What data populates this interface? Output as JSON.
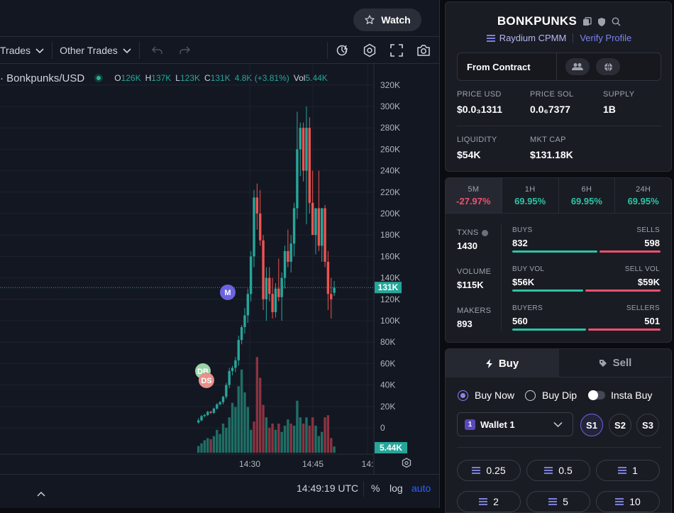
{
  "header": {
    "watch_label": "Watch"
  },
  "toolbar": {
    "trades_label": "Trades",
    "other_trades_label": "Other Trades"
  },
  "legend": {
    "symbol": "· Bonkpunks/USD",
    "o_key": "O",
    "o": "126K",
    "h_key": "H",
    "h": "137K",
    "l_key": "L",
    "l": "123K",
    "c_key": "C",
    "c": "131K",
    "change": "4.8K (+3.81%)",
    "vol_key": "Vol",
    "vol": "5.44K"
  },
  "chart_data": {
    "type": "candlestick",
    "y_ticks": [
      "320K",
      "300K",
      "280K",
      "260K",
      "240K",
      "220K",
      "200K",
      "180K",
      "160K",
      "140K",
      "120K",
      "100K",
      "80K",
      "60K",
      "40K",
      "20K",
      "0"
    ],
    "x_ticks": [
      "14:30",
      "14:45",
      "14:"
    ],
    "last_price_label": "131K",
    "volume_label": "5.44K",
    "markers": [
      {
        "label": "M",
        "color": "#6c63e0"
      },
      {
        "label": "DB",
        "color": "#9bd3a8"
      },
      {
        "label": "DS",
        "color": "#e8908a"
      }
    ],
    "candles": [
      {
        "o": 5,
        "h": 9,
        "l": 4,
        "c": 7
      },
      {
        "o": 7,
        "h": 12,
        "l": 6,
        "c": 11
      },
      {
        "o": 11,
        "h": 13,
        "l": 10,
        "c": 12
      },
      {
        "o": 12,
        "h": 16,
        "l": 11,
        "c": 15
      },
      {
        "o": 15,
        "h": 16,
        "l": 13,
        "c": 14
      },
      {
        "o": 14,
        "h": 19,
        "l": 13,
        "c": 18
      },
      {
        "o": 18,
        "h": 23,
        "l": 17,
        "c": 22
      },
      {
        "o": 22,
        "h": 25,
        "l": 21,
        "c": 24
      },
      {
        "o": 24,
        "h": 30,
        "l": 22,
        "c": 29
      },
      {
        "o": 29,
        "h": 42,
        "l": 27,
        "c": 40
      },
      {
        "o": 40,
        "h": 56,
        "l": 37,
        "c": 53
      },
      {
        "o": 53,
        "h": 58,
        "l": 49,
        "c": 56
      },
      {
        "o": 56,
        "h": 66,
        "l": 52,
        "c": 63
      },
      {
        "o": 63,
        "h": 86,
        "l": 58,
        "c": 82
      },
      {
        "o": 82,
        "h": 96,
        "l": 78,
        "c": 94
      },
      {
        "o": 94,
        "h": 112,
        "l": 88,
        "c": 105
      },
      {
        "o": 105,
        "h": 130,
        "l": 98,
        "c": 125
      },
      {
        "o": 125,
        "h": 165,
        "l": 118,
        "c": 160
      },
      {
        "o": 160,
        "h": 222,
        "l": 150,
        "c": 215
      },
      {
        "o": 215,
        "h": 228,
        "l": 185,
        "c": 200
      },
      {
        "o": 200,
        "h": 222,
        "l": 170,
        "c": 175
      },
      {
        "o": 175,
        "h": 180,
        "l": 110,
        "c": 120
      },
      {
        "o": 120,
        "h": 150,
        "l": 100,
        "c": 140
      },
      {
        "o": 140,
        "h": 150,
        "l": 118,
        "c": 125
      },
      {
        "o": 125,
        "h": 140,
        "l": 102,
        "c": 108
      },
      {
        "o": 108,
        "h": 135,
        "l": 103,
        "c": 130
      },
      {
        "o": 130,
        "h": 158,
        "l": 118,
        "c": 122
      },
      {
        "o": 122,
        "h": 145,
        "l": 100,
        "c": 140
      },
      {
        "o": 140,
        "h": 170,
        "l": 130,
        "c": 165
      },
      {
        "o": 165,
        "h": 185,
        "l": 150,
        "c": 155
      },
      {
        "o": 155,
        "h": 180,
        "l": 145,
        "c": 172
      },
      {
        "o": 172,
        "h": 210,
        "l": 160,
        "c": 205
      },
      {
        "o": 205,
        "h": 295,
        "l": 195,
        "c": 260
      },
      {
        "o": 260,
        "h": 285,
        "l": 235,
        "c": 280
      },
      {
        "o": 280,
        "h": 285,
        "l": 230,
        "c": 240
      },
      {
        "o": 240,
        "h": 300,
        "l": 190,
        "c": 280
      },
      {
        "o": 280,
        "h": 290,
        "l": 200,
        "c": 210
      },
      {
        "o": 210,
        "h": 240,
        "l": 180,
        "c": 180
      },
      {
        "o": 180,
        "h": 205,
        "l": 162,
        "c": 205
      },
      {
        "o": 205,
        "h": 240,
        "l": 165,
        "c": 170
      },
      {
        "o": 170,
        "h": 205,
        "l": 155,
        "c": 205
      },
      {
        "o": 205,
        "h": 208,
        "l": 150,
        "c": 155
      },
      {
        "o": 155,
        "h": 165,
        "l": 110,
        "c": 125
      },
      {
        "o": 125,
        "h": 140,
        "l": 102,
        "c": 120
      },
      {
        "o": 126,
        "h": 137,
        "l": 123,
        "c": 131
      }
    ],
    "volumes": [
      {
        "v": 3.2,
        "up": true
      },
      {
        "v": 4.5,
        "up": true
      },
      {
        "v": 6,
        "up": true
      },
      {
        "v": 7,
        "up": true
      },
      {
        "v": 6.5,
        "up": false
      },
      {
        "v": 8,
        "up": true
      },
      {
        "v": 11,
        "up": true
      },
      {
        "v": 9,
        "up": true
      },
      {
        "v": 14,
        "up": true
      },
      {
        "v": 12,
        "up": true
      },
      {
        "v": 17,
        "up": true
      },
      {
        "v": 24,
        "up": true
      },
      {
        "v": 22,
        "up": true
      },
      {
        "v": 32,
        "up": true
      },
      {
        "v": 40,
        "up": true
      },
      {
        "v": 29,
        "up": true
      },
      {
        "v": 22,
        "up": true
      },
      {
        "v": 11,
        "up": true
      },
      {
        "v": 15,
        "up": false
      },
      {
        "v": 46,
        "up": false
      },
      {
        "v": 36,
        "up": false
      },
      {
        "v": 23,
        "up": false
      },
      {
        "v": 17,
        "up": true
      },
      {
        "v": 12,
        "up": false
      },
      {
        "v": 14,
        "up": false
      },
      {
        "v": 11,
        "up": true
      },
      {
        "v": 14,
        "up": false
      },
      {
        "v": 10,
        "up": true
      },
      {
        "v": 13,
        "up": true
      },
      {
        "v": 16,
        "up": true
      },
      {
        "v": 14,
        "up": false
      },
      {
        "v": 13,
        "up": true
      },
      {
        "v": 25,
        "up": true
      },
      {
        "v": 17,
        "up": true
      },
      {
        "v": 14,
        "up": false
      },
      {
        "v": 17,
        "up": true
      },
      {
        "v": 13,
        "up": false
      },
      {
        "v": 17,
        "up": false
      },
      {
        "v": 13,
        "up": true
      },
      {
        "v": 8,
        "up": true
      },
      {
        "v": 10,
        "up": true
      },
      {
        "v": 17,
        "up": false
      },
      {
        "v": 18,
        "up": false
      },
      {
        "v": 7,
        "up": false
      },
      {
        "v": 3,
        "up": true
      }
    ]
  },
  "bottom": {
    "time": "14:49:19 UTC",
    "percent": "%",
    "log": "log",
    "auto": "auto"
  },
  "token": {
    "name": "BONKPUNKS",
    "dex": "Raydium CPMM",
    "verify": "Verify Profile",
    "from_contract": "From Contract",
    "stats": [
      {
        "label": "PRICE USD",
        "value": "$0.0₃1311"
      },
      {
        "label": "PRICE SOL",
        "value": "0.0₆7377"
      },
      {
        "label": "SUPPLY",
        "value": "1B"
      },
      {
        "label": "LIQUIDITY",
        "value": "$54K"
      },
      {
        "label": "MKT CAP",
        "value": "$131.18K"
      }
    ]
  },
  "timeframes": [
    {
      "label": "5M",
      "value": "-27.97%"
    },
    {
      "label": "1H",
      "value": "69.95%"
    },
    {
      "label": "6H",
      "value": "69.95%"
    },
    {
      "label": "24H",
      "value": "69.95%"
    }
  ],
  "txstats": [
    {
      "label": "TXNS",
      "value": "1430",
      "left_label": "BUYS",
      "left": "832",
      "right_label": "SELLS",
      "right": "598",
      "ratio": 0.582
    },
    {
      "label": "VOLUME",
      "value": "$115K",
      "left_label": "BUY VOL",
      "left": "$56K",
      "right_label": "SELL VOL",
      "right": "$59K",
      "ratio": 0.487
    },
    {
      "label": "MAKERS",
      "value": "893",
      "left_label": "BUYERS",
      "left": "560",
      "right_label": "SELLERS",
      "right": "501",
      "ratio": 0.528
    }
  ],
  "trade": {
    "buy_tab": "Buy",
    "sell_tab": "Sell",
    "buy_now": "Buy Now",
    "buy_dip": "Buy Dip",
    "insta_buy": "Insta Buy",
    "wallet": "Wallet 1",
    "wallet_badge": "1",
    "slots": [
      "S1",
      "S2",
      "S3"
    ],
    "amounts": [
      "0.25",
      "0.5",
      "1",
      "2",
      "5",
      "10"
    ]
  },
  "colors": {
    "up": "#26a69a",
    "down": "#ef5350",
    "accent": "#6c63e0",
    "positive": "#2bc4a4",
    "negative": "#f0506e"
  }
}
